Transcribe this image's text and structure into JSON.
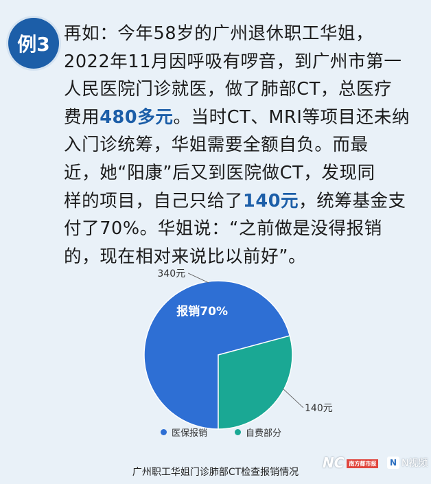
{
  "badge": {
    "label": "例3"
  },
  "paragraph": {
    "lines": [
      [
        {
          "t": "再如：今年58岁的广州退休职工华姐，",
          "hl": false
        }
      ],
      [
        {
          "t": "2022年11月因呼吸有啰音，到广州市第一",
          "hl": false
        }
      ],
      [
        {
          "t": "人民医院门诊就医，做了肺部CT，总医疗",
          "hl": false
        }
      ],
      [
        {
          "t": "费用",
          "hl": false
        },
        {
          "t": "480多元",
          "hl": true
        },
        {
          "t": "。当时CT、MRI等项目还未纳",
          "hl": false
        }
      ],
      [
        {
          "t": "入门诊统筹，华姐需要全额自负。而最",
          "hl": false
        }
      ],
      [
        {
          "t": "近，她“阳康”后又到医院做CT，发现同",
          "hl": false
        }
      ],
      [
        {
          "t": "样的项目，自己只给了",
          "hl": false
        },
        {
          "t": "140元",
          "hl": true
        },
        {
          "t": "，统筹基金支",
          "hl": false
        }
      ],
      [
        {
          "t": "付了70%。华姐说：“之前做是没得报销",
          "hl": false
        }
      ],
      [
        {
          "t": "的，现在相对来说比以前好”。",
          "hl": false
        }
      ]
    ]
  },
  "chart_data": {
    "type": "pie",
    "slices": [
      {
        "name": "医保报销",
        "value": 340,
        "label": "340元",
        "inner_label": "报销70%",
        "color": "#2e6fd4"
      },
      {
        "name": "自费部分",
        "value": 140,
        "label": "140元",
        "inner_label": "",
        "color": "#1aa894"
      }
    ],
    "legend": [
      "医保报销",
      "自费部分"
    ],
    "legend_position": "bottom"
  },
  "caption": {
    "text": "广州职工华姐门诊肺部CT检查报销情况"
  },
  "watermarks": {
    "nc": "NC",
    "nc_sub": "南方都市报",
    "n": "N视频",
    "n_mark": "N"
  }
}
